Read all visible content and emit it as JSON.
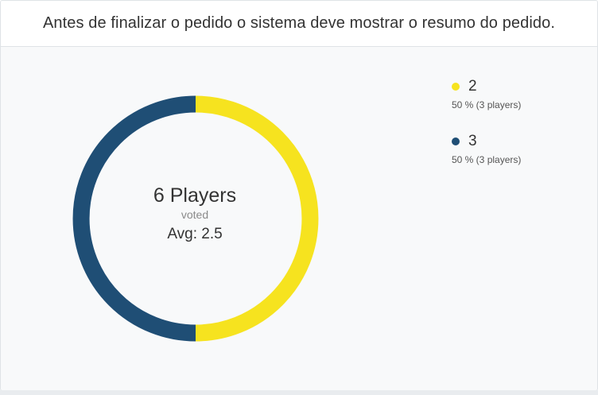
{
  "header": {
    "title": "Antes de finalizar o pedido o sistema deve mostrar o resumo do pedido."
  },
  "summary": {
    "main": "6 Players",
    "sub": "voted",
    "avg": "Avg: 2.5"
  },
  "legend": {
    "items": [
      {
        "label": "2",
        "detail": "50 % (3 players)",
        "color": "#f6e31f"
      },
      {
        "label": "3",
        "detail": "50 % (3 players)",
        "color": "#1f4e75"
      }
    ]
  },
  "chart_data": {
    "type": "pie",
    "categories": [
      "2",
      "3"
    ],
    "values": [
      3,
      3
    ],
    "percent": [
      50,
      50
    ],
    "colors": [
      "#f6e31f",
      "#1f4e75"
    ],
    "title": "6 Players",
    "legend_position": "right"
  }
}
